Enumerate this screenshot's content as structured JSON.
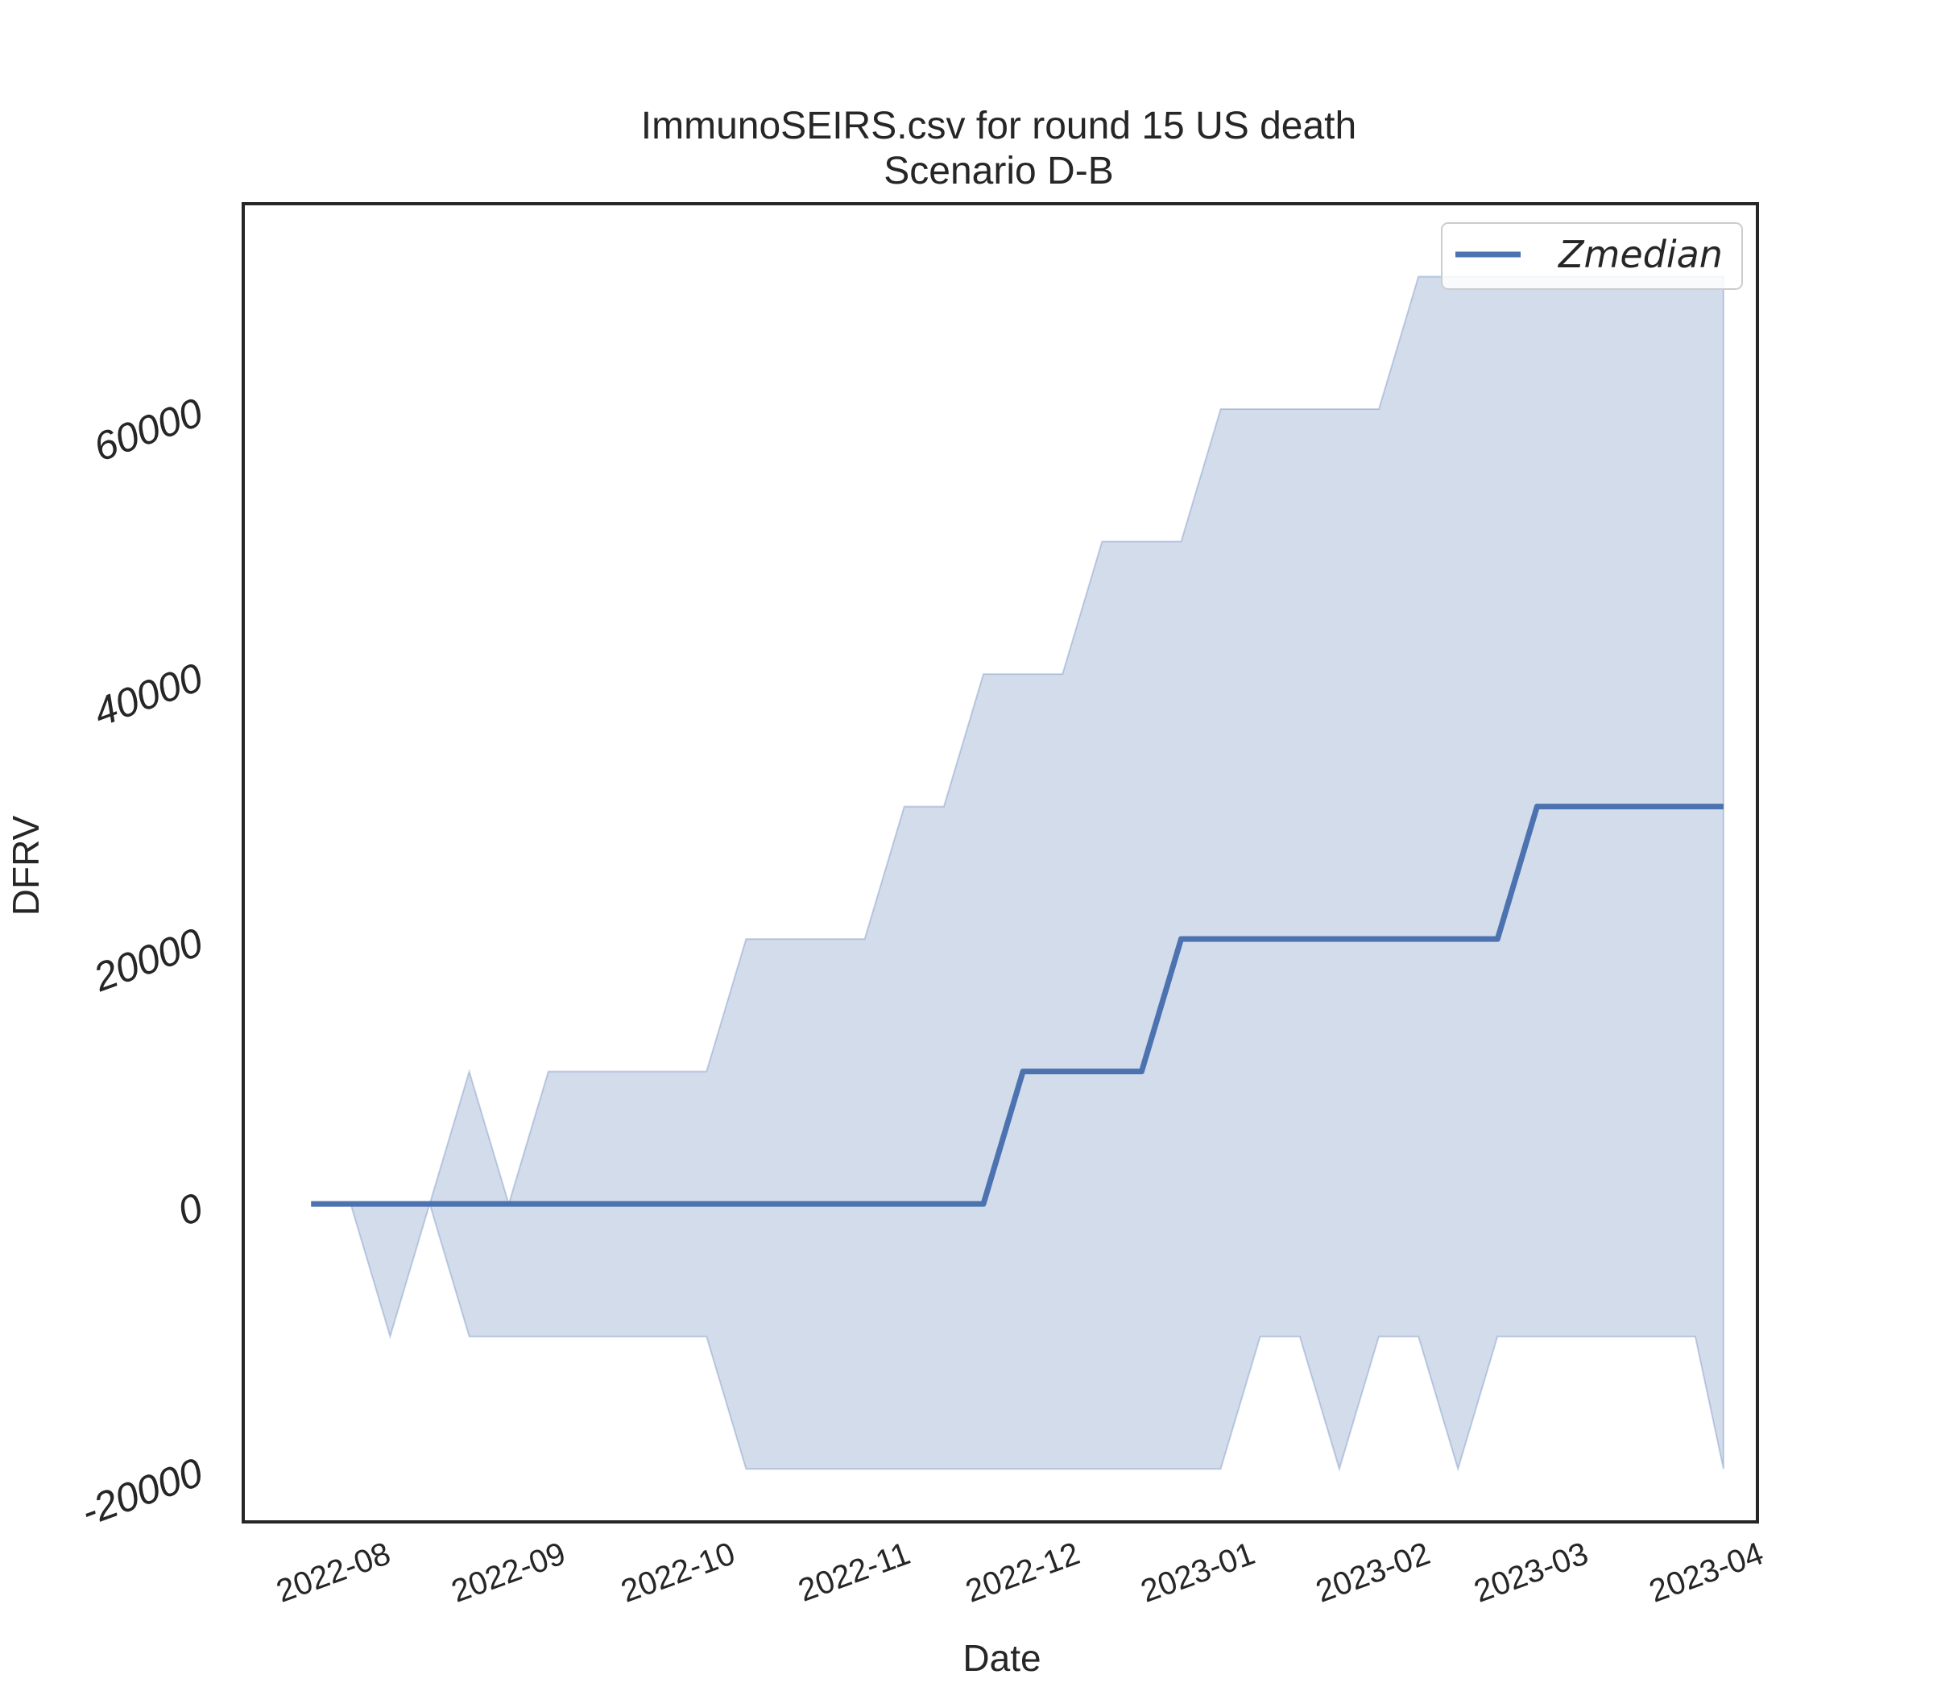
{
  "chart_data": {
    "type": "line",
    "title": "ImmunoSEIRS.csv for round 15 US death",
    "subtitle": "Scenario D-B",
    "xlabel": "Date",
    "ylabel": "DFRV",
    "xlim": [
      "2022-07-07",
      "2023-04-01"
    ],
    "ylim": [
      -24000,
      75500
    ],
    "xticks": [
      "2022-08",
      "2022-09",
      "2022-10",
      "2022-11",
      "2022-12",
      "2023-01",
      "2023-02",
      "2023-03",
      "2023-04"
    ],
    "xtick_dates": [
      "2022-08-01",
      "2022-09-01",
      "2022-10-01",
      "2022-11-01",
      "2022-12-01",
      "2023-01-01",
      "2023-02-01",
      "2023-03-01",
      "2023-04-01"
    ],
    "yticks": [
      "-20000",
      "0",
      "20000",
      "40000",
      "60000"
    ],
    "ytick_values": [
      -20000,
      0,
      20000,
      40000,
      60000
    ],
    "grid": false,
    "legend_position": "top-right",
    "colors": {
      "line": "#4c72b0",
      "band": "#4c72b0",
      "frame": "#262626"
    },
    "x": [
      "2022-07-19",
      "2022-07-26",
      "2022-08-02",
      "2022-08-09",
      "2022-08-16",
      "2022-08-23",
      "2022-08-30",
      "2022-09-06",
      "2022-09-13",
      "2022-09-20",
      "2022-09-27",
      "2022-10-04",
      "2022-10-11",
      "2022-10-18",
      "2022-10-25",
      "2022-11-01",
      "2022-11-08",
      "2022-11-15",
      "2022-11-22",
      "2022-11-29",
      "2022-12-06",
      "2022-12-13",
      "2022-12-20",
      "2022-12-27",
      "2023-01-03",
      "2023-01-10",
      "2023-01-17",
      "2023-01-24",
      "2023-01-31",
      "2023-02-07",
      "2023-02-14",
      "2023-02-21",
      "2023-02-28",
      "2023-03-07",
      "2023-03-14",
      "2023-03-21",
      "2023-03-26"
    ],
    "series": [
      {
        "name": "Zmedian",
        "values": [
          0,
          0,
          0,
          0,
          0,
          0,
          0,
          0,
          0,
          0,
          0,
          0,
          0,
          0,
          0,
          0,
          0,
          0,
          10000,
          10000,
          10000,
          10000,
          20000,
          20000,
          20000,
          20000,
          20000,
          20000,
          20000,
          20000,
          20000,
          30000,
          30000,
          30000,
          30000,
          30000,
          30000
        ]
      }
    ],
    "band": {
      "upper": [
        0,
        0,
        0,
        0,
        10000,
        0,
        10000,
        10000,
        10000,
        10000,
        10000,
        20000,
        20000,
        20000,
        20000,
        30000,
        30000,
        40000,
        40000,
        40000,
        50000,
        50000,
        50000,
        60000,
        60000,
        60000,
        60000,
        60000,
        70000,
        70000,
        70000,
        70000,
        70000,
        70000,
        70000,
        70000,
        70000
      ],
      "lower": [
        0,
        0,
        -10000,
        0,
        -10000,
        -10000,
        -10000,
        -10000,
        -10000,
        -10000,
        -10000,
        -20000,
        -20000,
        -20000,
        -20000,
        -20000,
        -20000,
        -20000,
        -20000,
        -20000,
        -20000,
        -20000,
        -20000,
        -20000,
        -10000,
        -10000,
        -20000,
        -10000,
        -10000,
        -20000,
        -10000,
        -10000,
        -10000,
        -10000,
        -10000,
        -10000,
        -20000
      ]
    }
  }
}
